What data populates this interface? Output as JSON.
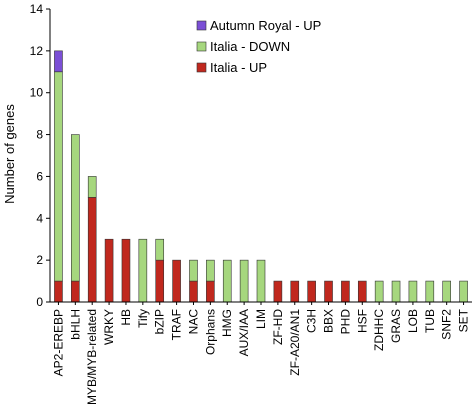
{
  "chart_data": {
    "type": "bar",
    "stacked": true,
    "title": "",
    "xlabel": "",
    "ylabel": "Number of genes",
    "ylim": [
      0,
      14
    ],
    "yticks": [
      0,
      2,
      4,
      6,
      8,
      10,
      12,
      14
    ],
    "legend_position": "top-center",
    "categories": [
      "AP2-EREBP",
      "bHLH",
      "MYB/MYB-related",
      "WRKY",
      "HB",
      "Tify",
      "bZIP",
      "TRAF",
      "NAC",
      "Orphans",
      "HMG",
      "AUX/IAA",
      "LIM",
      "ZF-HD",
      "ZF-A20/AN1",
      "C3H",
      "BBX",
      "PHD",
      "HSF",
      "ZDHHC",
      "GRAS",
      "LOB",
      "TUB",
      "SNF2",
      "SET"
    ],
    "series": [
      {
        "name": "Italia - UP",
        "color": "#c0281e",
        "values": [
          1,
          1,
          5,
          3,
          3,
          0,
          2,
          2,
          1,
          1,
          0,
          0,
          0,
          1,
          1,
          1,
          1,
          1,
          1,
          0,
          0,
          0,
          0,
          0,
          0
        ]
      },
      {
        "name": "Italia - DOWN",
        "color": "#a6d77e",
        "values": [
          10,
          7,
          1,
          0,
          0,
          3,
          1,
          0,
          1,
          1,
          2,
          2,
          2,
          0,
          0,
          0,
          0,
          0,
          0,
          1,
          1,
          1,
          1,
          1,
          1
        ]
      },
      {
        "name": "Autumn Royal - UP",
        "color": "#7b4fd6",
        "values": [
          1,
          0,
          0,
          0,
          0,
          0,
          0,
          0,
          0,
          0,
          0,
          0,
          0,
          0,
          0,
          0,
          0,
          0,
          0,
          0,
          0,
          0,
          0,
          0,
          0
        ]
      }
    ],
    "legend_order": [
      "Autumn Royal - UP",
      "Italia - DOWN",
      "Italia - UP"
    ],
    "grid": false
  }
}
